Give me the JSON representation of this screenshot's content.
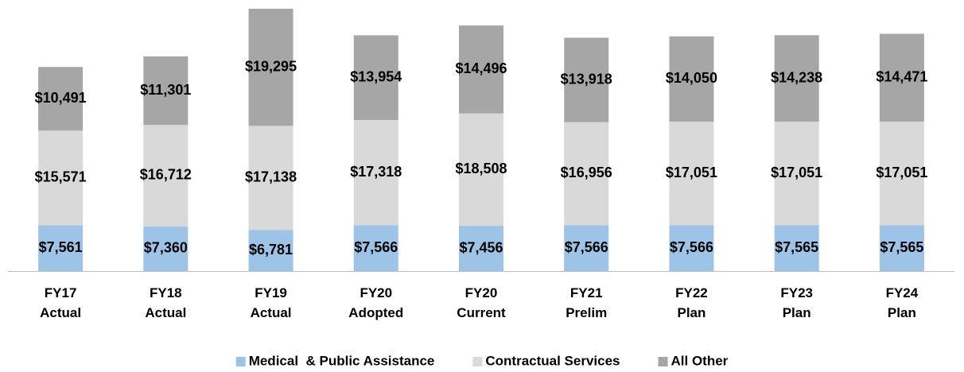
{
  "chart_data": {
    "type": "stacked_bar",
    "categories": [
      "FY17 Actual",
      "FY18 Actual",
      "FY19 Actual",
      "FY20 Adopted",
      "FY20 Current",
      "FY21 Prelim",
      "FY22 Plan",
      "FY23 Plan",
      "FY24 Plan"
    ],
    "series": [
      {
        "name": "Medical  & Public Assistance",
        "color": "#9dc3e6",
        "values": [
          7561,
          7360,
          6781,
          7566,
          7456,
          7566,
          7566,
          7565,
          7565
        ],
        "value_labels": [
          "$7,561",
          "$7,360",
          "$6,781",
          "$7,566",
          "$7,456",
          "$7,566",
          "$7,566",
          "$7,565",
          "$7,565"
        ]
      },
      {
        "name": "Contractual Services",
        "color": "#d9d9d9",
        "values": [
          15571,
          16712,
          17138,
          17318,
          18508,
          16956,
          17051,
          17051,
          17051
        ],
        "value_labels": [
          "$15,571",
          "$16,712",
          "$17,138",
          "$17,318",
          "$18,508",
          "$16,956",
          "$17,051",
          "$17,051",
          "$17,051"
        ]
      },
      {
        "name": "All Other",
        "color": "#a6a6a6",
        "values": [
          10491,
          11301,
          19295,
          13954,
          14496,
          13918,
          14050,
          14238,
          14471
        ],
        "value_labels": [
          "$10,491",
          "$11,301",
          "$19,295",
          "$13,954",
          "$14,496",
          "$13,918",
          "$14,050",
          "$14,238",
          "$14,471"
        ]
      }
    ],
    "legend": "bottom"
  }
}
